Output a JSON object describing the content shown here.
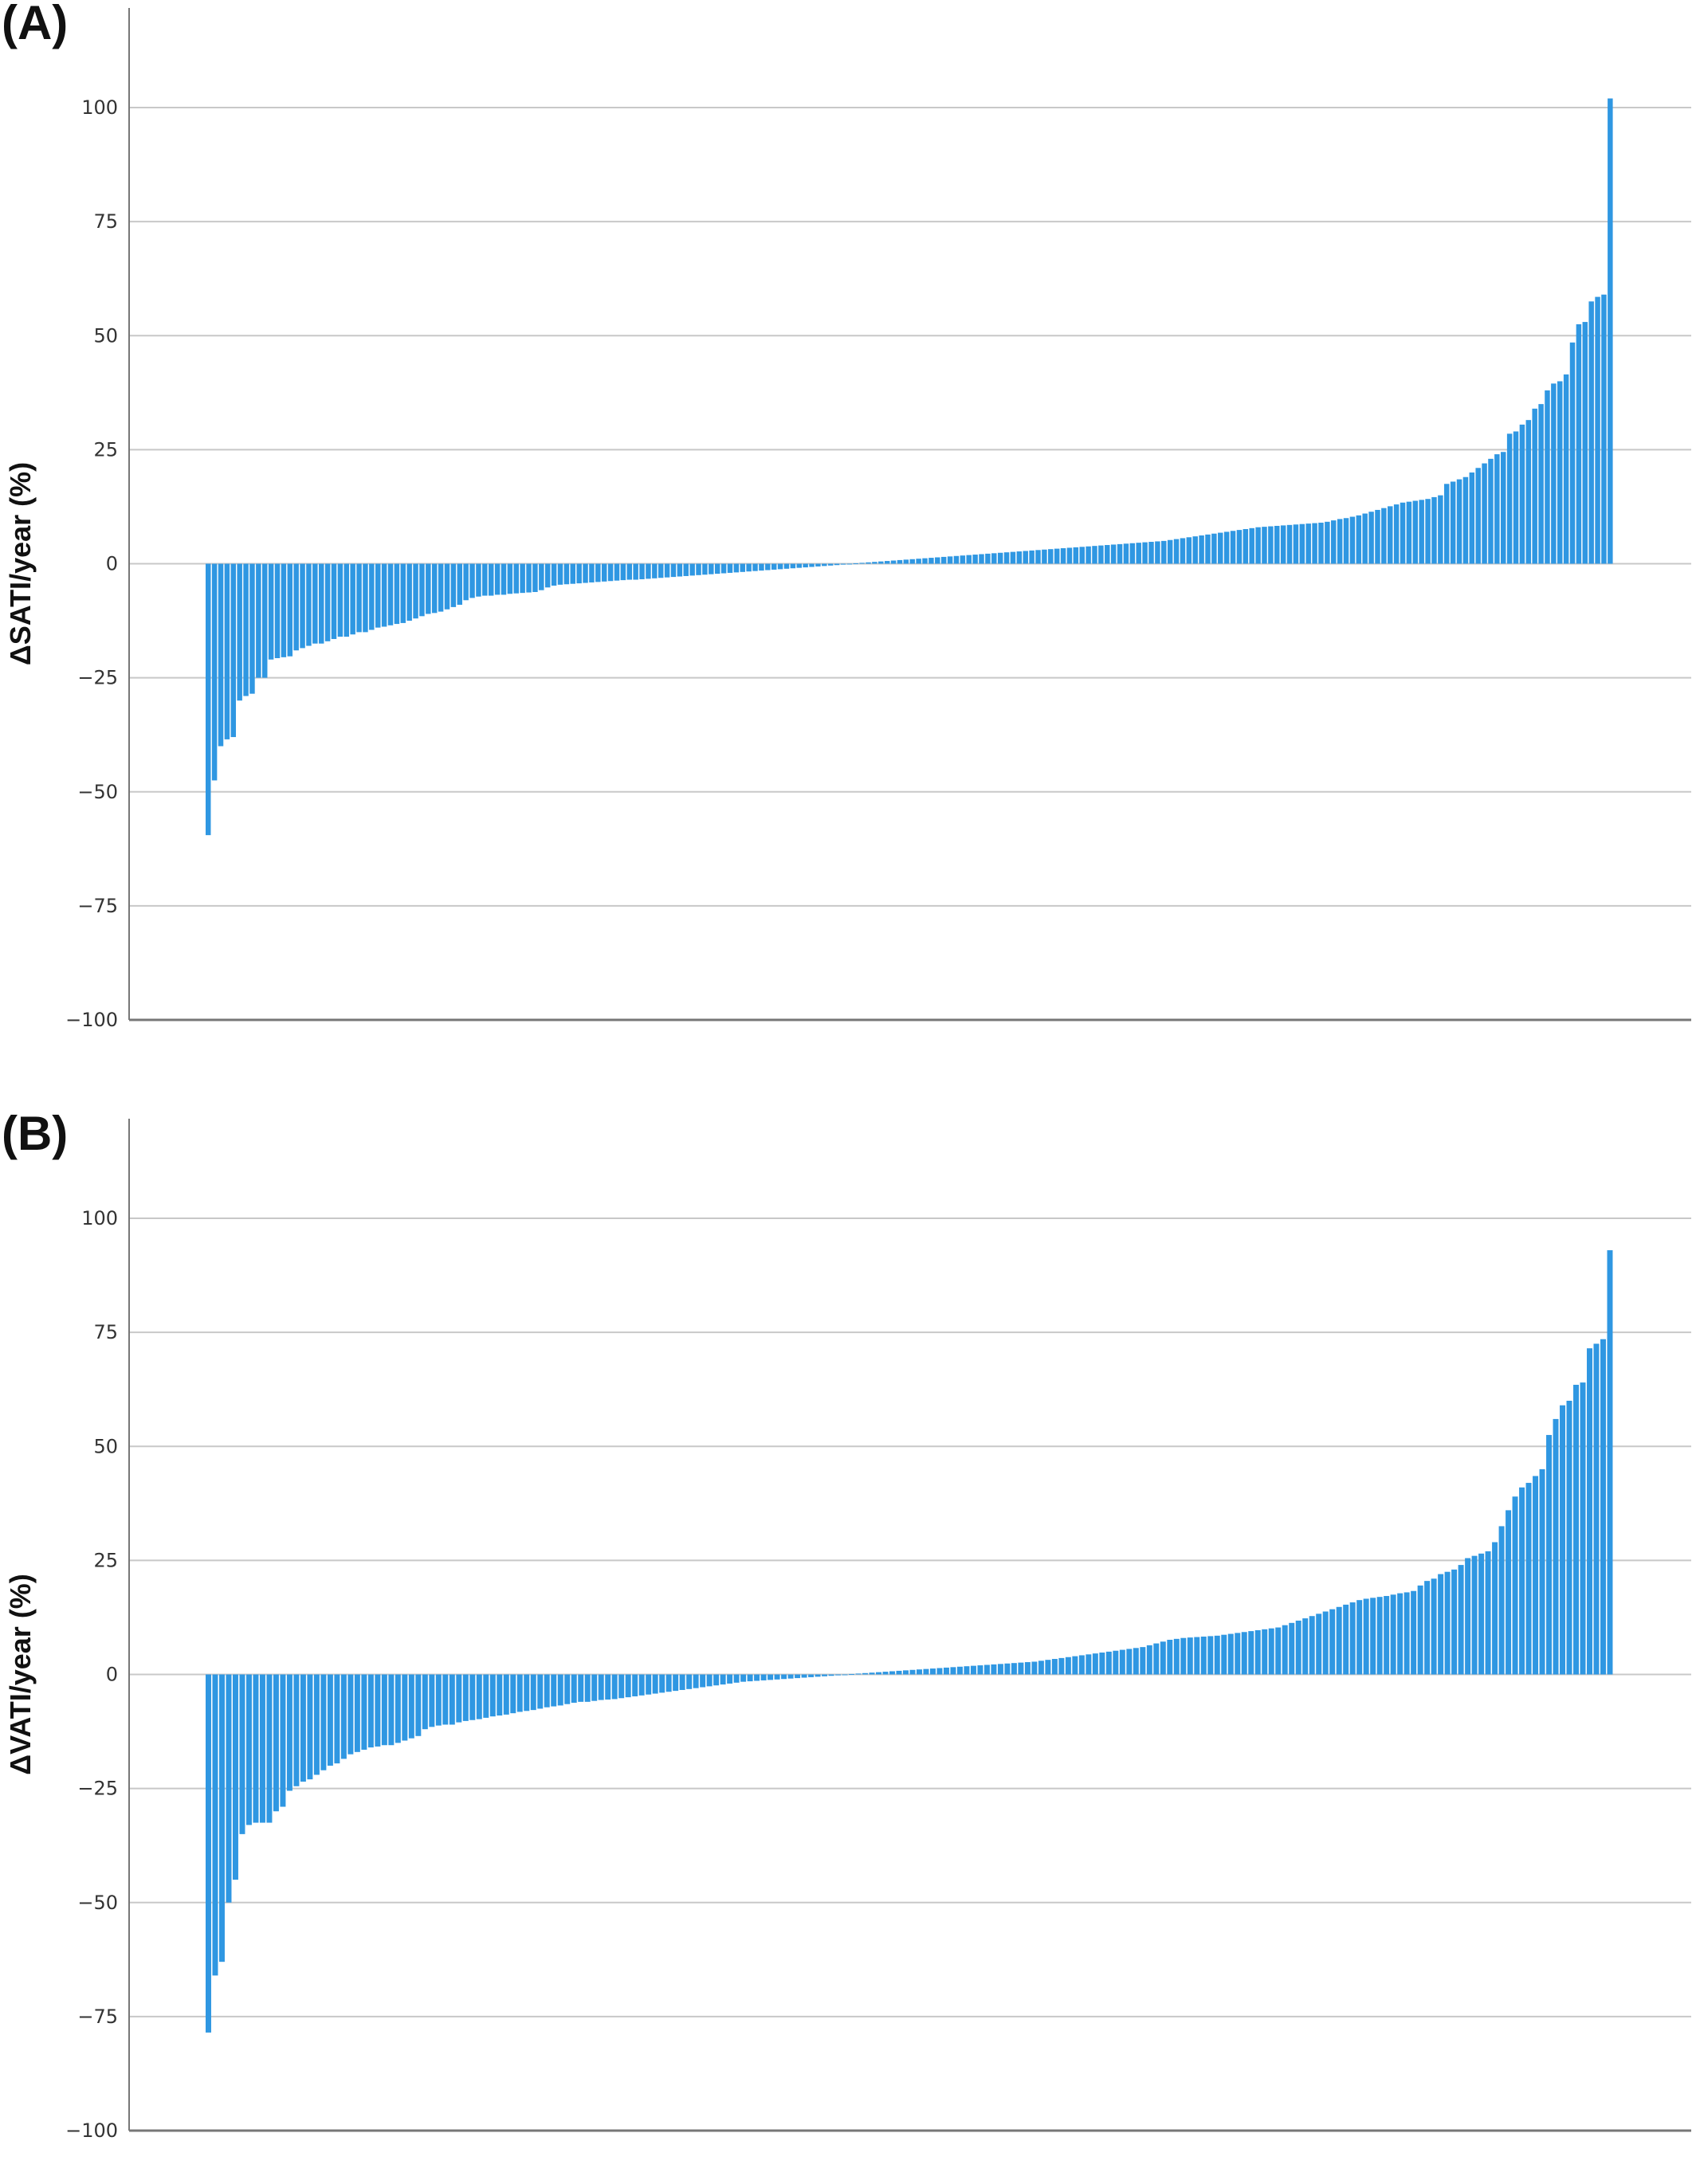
{
  "panels": [
    {
      "label": "(A)",
      "ylabel": "ΔSATI/year (%)"
    },
    {
      "label": "(B)",
      "ylabel": "ΔVATI/year (%)"
    }
  ],
  "colors": {
    "bar": "#2f97e2",
    "grid": "#c8c8c8",
    "axis": "#777777"
  },
  "chart_data": [
    {
      "type": "bar",
      "title": "",
      "ylabel": "ΔSATI/year (%)",
      "ylim": [
        -100,
        100
      ],
      "yticks": [
        -100,
        -75,
        -50,
        -25,
        0,
        25,
        50,
        75,
        100
      ],
      "grid": true,
      "sorted": "ascending",
      "values": [
        -59.5,
        -47.5,
        -40.0,
        -38.5,
        -38.0,
        -30.0,
        -29.0,
        -28.5,
        -25.0,
        -25.0,
        -21.0,
        -20.7,
        -20.5,
        -20.3,
        -19.0,
        -18.5,
        -18.0,
        -17.5,
        -17.5,
        -17.0,
        -16.5,
        -16.0,
        -16.0,
        -15.5,
        -15.0,
        -15.0,
        -14.5,
        -14.0,
        -13.8,
        -13.5,
        -13.2,
        -13.0,
        -12.5,
        -12.0,
        -11.5,
        -11.0,
        -10.8,
        -10.5,
        -10.0,
        -9.5,
        -9.0,
        -8.0,
        -7.5,
        -7.2,
        -7.0,
        -7.0,
        -6.8,
        -6.8,
        -6.6,
        -6.5,
        -6.4,
        -6.3,
        -6.2,
        -5.8,
        -5.2,
        -4.8,
        -4.6,
        -4.5,
        -4.4,
        -4.3,
        -4.2,
        -4.1,
        -4.0,
        -3.9,
        -3.8,
        -3.7,
        -3.6,
        -3.5,
        -3.5,
        -3.4,
        -3.3,
        -3.2,
        -3.1,
        -3.0,
        -2.9,
        -2.8,
        -2.7,
        -2.6,
        -2.5,
        -2.4,
        -2.3,
        -2.2,
        -2.1,
        -2.0,
        -1.9,
        -1.8,
        -1.7,
        -1.6,
        -1.5,
        -1.4,
        -1.3,
        -1.2,
        -1.1,
        -1.0,
        -0.9,
        -0.8,
        -0.7,
        -0.6,
        -0.5,
        -0.4,
        -0.3,
        -0.2,
        -0.1,
        0.1,
        0.2,
        0.3,
        0.4,
        0.5,
        0.6,
        0.7,
        0.8,
        0.9,
        1.0,
        1.1,
        1.2,
        1.3,
        1.4,
        1.5,
        1.6,
        1.7,
        1.8,
        1.9,
        2.0,
        2.1,
        2.2,
        2.3,
        2.4,
        2.5,
        2.6,
        2.7,
        2.8,
        2.9,
        3.0,
        3.1,
        3.2,
        3.3,
        3.4,
        3.5,
        3.6,
        3.7,
        3.8,
        3.9,
        4.0,
        4.1,
        4.2,
        4.3,
        4.4,
        4.5,
        4.6,
        4.7,
        4.8,
        4.9,
        5.0,
        5.2,
        5.4,
        5.6,
        5.8,
        6.0,
        6.2,
        6.4,
        6.6,
        6.8,
        7.0,
        7.2,
        7.4,
        7.6,
        7.8,
        8.0,
        8.1,
        8.2,
        8.3,
        8.4,
        8.5,
        8.6,
        8.7,
        8.8,
        8.9,
        9.0,
        9.2,
        9.5,
        9.8,
        10.0,
        10.3,
        10.6,
        11.0,
        11.4,
        11.8,
        12.2,
        12.6,
        13.0,
        13.4,
        13.6,
        13.8,
        14.0,
        14.2,
        14.6,
        15.0,
        17.5,
        18.0,
        18.5,
        19.0,
        20.0,
        21.0,
        22.0,
        23.0,
        24.0,
        24.5,
        28.5,
        29.0,
        30.5,
        31.5,
        34.0,
        35.0,
        38.0,
        39.5,
        40.0,
        41.5,
        48.5,
        52.5,
        53.0,
        57.5,
        58.5,
        59.0,
        102.0
      ]
    },
    {
      "type": "bar",
      "title": "",
      "ylabel": "ΔVATI/year (%)",
      "ylim": [
        -100,
        100
      ],
      "yticks": [
        -100,
        -75,
        -50,
        -25,
        0,
        25,
        50,
        75,
        100
      ],
      "grid": true,
      "sorted": "ascending",
      "values": [
        -78.5,
        -66.0,
        -63.0,
        -50.0,
        -45.0,
        -35.0,
        -33.0,
        -32.5,
        -32.5,
        -32.5,
        -30.0,
        -29.0,
        -25.5,
        -24.5,
        -23.5,
        -23.0,
        -22.0,
        -21.0,
        -20.0,
        -19.5,
        -18.5,
        -17.5,
        -17.0,
        -16.5,
        -16.0,
        -15.8,
        -15.5,
        -15.5,
        -15.0,
        -14.5,
        -14.0,
        -13.5,
        -12.0,
        -11.5,
        -11.2,
        -11.0,
        -11.0,
        -10.5,
        -10.2,
        -10.0,
        -9.8,
        -9.5,
        -9.2,
        -9.0,
        -8.8,
        -8.5,
        -8.2,
        -8.0,
        -7.8,
        -7.5,
        -7.2,
        -7.0,
        -6.8,
        -6.5,
        -6.2,
        -6.0,
        -6.0,
        -5.8,
        -5.6,
        -5.5,
        -5.4,
        -5.2,
        -5.0,
        -4.8,
        -4.6,
        -4.4,
        -4.2,
        -4.0,
        -3.8,
        -3.6,
        -3.4,
        -3.2,
        -3.0,
        -2.8,
        -2.6,
        -2.4,
        -2.2,
        -2.0,
        -1.8,
        -1.6,
        -1.5,
        -1.4,
        -1.3,
        -1.2,
        -1.1,
        -1.0,
        -0.9,
        -0.8,
        -0.7,
        -0.6,
        -0.5,
        -0.4,
        -0.3,
        -0.2,
        -0.1,
        0.1,
        0.2,
        0.3,
        0.4,
        0.5,
        0.6,
        0.7,
        0.8,
        0.9,
        1.0,
        1.1,
        1.2,
        1.3,
        1.4,
        1.5,
        1.6,
        1.7,
        1.8,
        1.9,
        2.0,
        2.1,
        2.2,
        2.3,
        2.4,
        2.5,
        2.6,
        2.7,
        2.8,
        3.0,
        3.2,
        3.4,
        3.6,
        3.8,
        4.0,
        4.2,
        4.4,
        4.6,
        4.8,
        5.0,
        5.2,
        5.4,
        5.6,
        5.8,
        6.0,
        6.4,
        6.8,
        7.2,
        7.6,
        7.8,
        8.0,
        8.1,
        8.2,
        8.3,
        8.4,
        8.5,
        8.7,
        8.9,
        9.1,
        9.3,
        9.5,
        9.7,
        9.9,
        10.1,
        10.3,
        10.8,
        11.3,
        11.8,
        12.3,
        12.8,
        13.3,
        13.8,
        14.3,
        14.8,
        15.3,
        15.8,
        16.3,
        16.6,
        16.8,
        17.0,
        17.2,
        17.5,
        17.8,
        18.0,
        18.3,
        19.5,
        20.5,
        21.0,
        22.0,
        22.5,
        23.0,
        24.0,
        25.5,
        26.0,
        26.5,
        27.0,
        29.0,
        32.5,
        36.0,
        39.0,
        41.0,
        42.0,
        43.5,
        45.0,
        52.5,
        56.0,
        59.0,
        60.0,
        63.5,
        64.0,
        71.5,
        72.5,
        73.5,
        93.0
      ]
    }
  ]
}
